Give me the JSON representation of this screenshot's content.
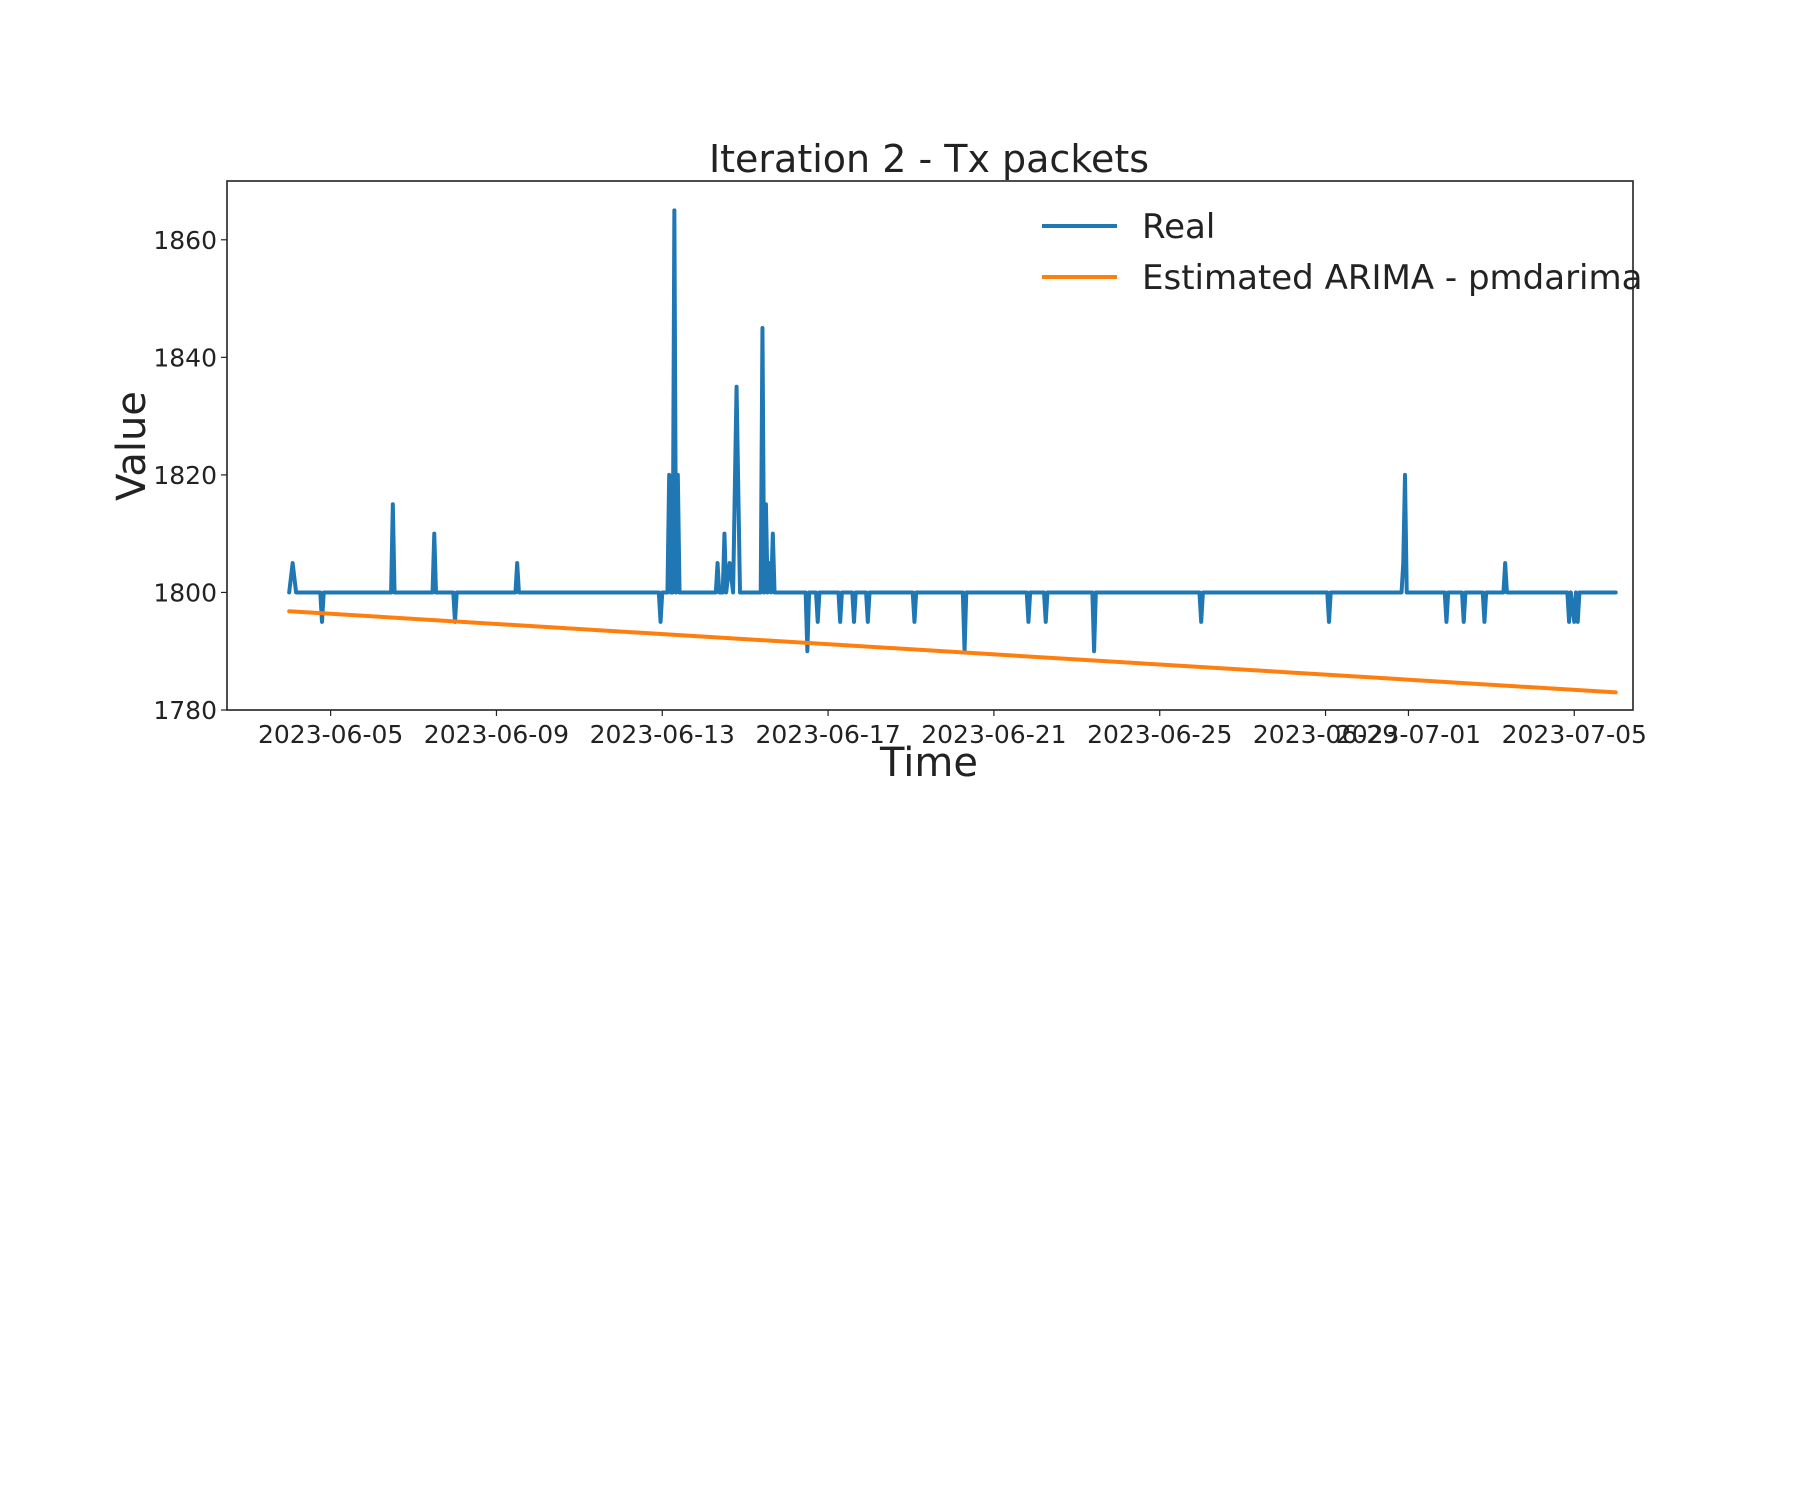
{
  "chart_data": {
    "type": "line",
    "title": "Iteration 2 - Tx packets",
    "xlabel": "Time",
    "ylabel": "Value",
    "x_type": "date",
    "xlim": [
      "2023-06-02T12:00",
      "2023-07-06T10:00"
    ],
    "ylim": [
      1780,
      1870
    ],
    "x_ticks": [
      "2023-06-05",
      "2023-06-09",
      "2023-06-13",
      "2023-06-17",
      "2023-06-21",
      "2023-06-25",
      "2023-06-29",
      "2023-07-01",
      "2023-07-05"
    ],
    "y_ticks": [
      1780,
      1800,
      1820,
      1840,
      1860
    ],
    "grid": false,
    "legend_position": "top-right",
    "series": [
      {
        "name": "Real",
        "color": "#1f77b4",
        "points": [
          [
            "2023-06-04T00:00",
            1800
          ],
          [
            "2023-06-04T02:00",
            1805
          ],
          [
            "2023-06-04T04:00",
            1800
          ],
          [
            "2023-06-04T18:00",
            1800
          ],
          [
            "2023-06-04T19:00",
            1795
          ],
          [
            "2023-06-04T20:00",
            1800
          ],
          [
            "2023-06-06T11:00",
            1800
          ],
          [
            "2023-06-06T12:00",
            1815
          ],
          [
            "2023-06-06T13:00",
            1800
          ],
          [
            "2023-06-07T11:00",
            1800
          ],
          [
            "2023-06-07T12:00",
            1810
          ],
          [
            "2023-06-07T13:00",
            1800
          ],
          [
            "2023-06-07T23:00",
            1800
          ],
          [
            "2023-06-08T00:00",
            1795
          ],
          [
            "2023-06-08T01:00",
            1800
          ],
          [
            "2023-06-09T11:00",
            1800
          ],
          [
            "2023-06-09T12:00",
            1805
          ],
          [
            "2023-06-09T13:00",
            1800
          ],
          [
            "2023-06-12T22:00",
            1800
          ],
          [
            "2023-06-12T23:00",
            1795
          ],
          [
            "2023-06-13T00:00",
            1800
          ],
          [
            "2023-06-13T03:00",
            1800
          ],
          [
            "2023-06-13T04:00",
            1820
          ],
          [
            "2023-06-13T05:00",
            1800
          ],
          [
            "2023-06-13T06:00",
            1800
          ],
          [
            "2023-06-13T07:00",
            1865
          ],
          [
            "2023-06-13T08:00",
            1800
          ],
          [
            "2023-06-13T09:00",
            1820
          ],
          [
            "2023-06-13T10:00",
            1800
          ],
          [
            "2023-06-14T07:00",
            1800
          ],
          [
            "2023-06-14T08:00",
            1805
          ],
          [
            "2023-06-14T09:00",
            1800
          ],
          [
            "2023-06-14T11:00",
            1800
          ],
          [
            "2023-06-14T12:00",
            1810
          ],
          [
            "2023-06-14T13:00",
            1800
          ],
          [
            "2023-06-14T15:00",
            1805
          ],
          [
            "2023-06-14T17:00",
            1800
          ],
          [
            "2023-06-14T19:00",
            1835
          ],
          [
            "2023-06-14T21:00",
            1800
          ],
          [
            "2023-06-15T09:00",
            1800
          ],
          [
            "2023-06-15T10:00",
            1845
          ],
          [
            "2023-06-15T11:00",
            1800
          ],
          [
            "2023-06-15T12:00",
            1815
          ],
          [
            "2023-06-15T13:00",
            1800
          ],
          [
            "2023-06-15T14:00",
            1805
          ],
          [
            "2023-06-15T15:00",
            1800
          ],
          [
            "2023-06-15T16:00",
            1810
          ],
          [
            "2023-06-15T17:00",
            1800
          ],
          [
            "2023-06-16T11:00",
            1800
          ],
          [
            "2023-06-16T12:00",
            1790
          ],
          [
            "2023-06-16T13:00",
            1800
          ],
          [
            "2023-06-16T17:00",
            1800
          ],
          [
            "2023-06-16T18:00",
            1795
          ],
          [
            "2023-06-16T19:00",
            1800
          ],
          [
            "2023-06-17T06:00",
            1800
          ],
          [
            "2023-06-17T07:00",
            1795
          ],
          [
            "2023-06-17T08:00",
            1800
          ],
          [
            "2023-06-17T14:00",
            1800
          ],
          [
            "2023-06-17T15:00",
            1795
          ],
          [
            "2023-06-17T16:00",
            1800
          ],
          [
            "2023-06-17T22:00",
            1800
          ],
          [
            "2023-06-17T23:00",
            1795
          ],
          [
            "2023-06-18T00:00",
            1800
          ],
          [
            "2023-06-19T01:00",
            1800
          ],
          [
            "2023-06-19T02:00",
            1795
          ],
          [
            "2023-06-19T03:00",
            1800
          ],
          [
            "2023-06-20T06:00",
            1800
          ],
          [
            "2023-06-20T07:00",
            1790
          ],
          [
            "2023-06-20T08:00",
            1800
          ],
          [
            "2023-06-21T19:00",
            1800
          ],
          [
            "2023-06-21T20:00",
            1795
          ],
          [
            "2023-06-21T21:00",
            1800
          ],
          [
            "2023-06-22T05:00",
            1800
          ],
          [
            "2023-06-22T06:00",
            1795
          ],
          [
            "2023-06-22T07:00",
            1800
          ],
          [
            "2023-06-23T09:00",
            1800
          ],
          [
            "2023-06-23T10:00",
            1790
          ],
          [
            "2023-06-23T11:00",
            1800
          ],
          [
            "2023-06-25T23:00",
            1800
          ],
          [
            "2023-06-26T00:00",
            1795
          ],
          [
            "2023-06-26T01:00",
            1800
          ],
          [
            "2023-06-29T01:00",
            1800
          ],
          [
            "2023-06-29T02:00",
            1795
          ],
          [
            "2023-06-29T03:00",
            1800
          ],
          [
            "2023-06-30T20:00",
            1800
          ],
          [
            "2023-06-30T21:00",
            1805
          ],
          [
            "2023-06-30T22:00",
            1820
          ],
          [
            "2023-06-30T23:00",
            1800
          ],
          [
            "2023-07-01T21:00",
            1800
          ],
          [
            "2023-07-01T22:00",
            1795
          ],
          [
            "2023-07-01T23:00",
            1800
          ],
          [
            "2023-07-02T07:00",
            1800
          ],
          [
            "2023-07-02T08:00",
            1795
          ],
          [
            "2023-07-02T09:00",
            1800
          ],
          [
            "2023-07-02T19:00",
            1800
          ],
          [
            "2023-07-02T20:00",
            1795
          ],
          [
            "2023-07-02T21:00",
            1800
          ],
          [
            "2023-07-03T07:00",
            1800
          ],
          [
            "2023-07-03T08:00",
            1805
          ],
          [
            "2023-07-03T09:00",
            1800
          ],
          [
            "2023-07-04T20:00",
            1800
          ],
          [
            "2023-07-04T21:00",
            1795
          ],
          [
            "2023-07-04T22:00",
            1800
          ],
          [
            "2023-07-05T00:00",
            1795
          ],
          [
            "2023-07-05T01:00",
            1800
          ],
          [
            "2023-07-05T02:00",
            1795
          ],
          [
            "2023-07-05T03:00",
            1800
          ],
          [
            "2023-07-06T00:00",
            1800
          ]
        ]
      },
      {
        "name": "Estimated ARIMA - pmdarima",
        "color": "#ff7f0e",
        "points": [
          [
            "2023-06-04T00:00",
            1796.8
          ],
          [
            "2023-07-06T00:00",
            1783.0
          ]
        ]
      }
    ]
  }
}
